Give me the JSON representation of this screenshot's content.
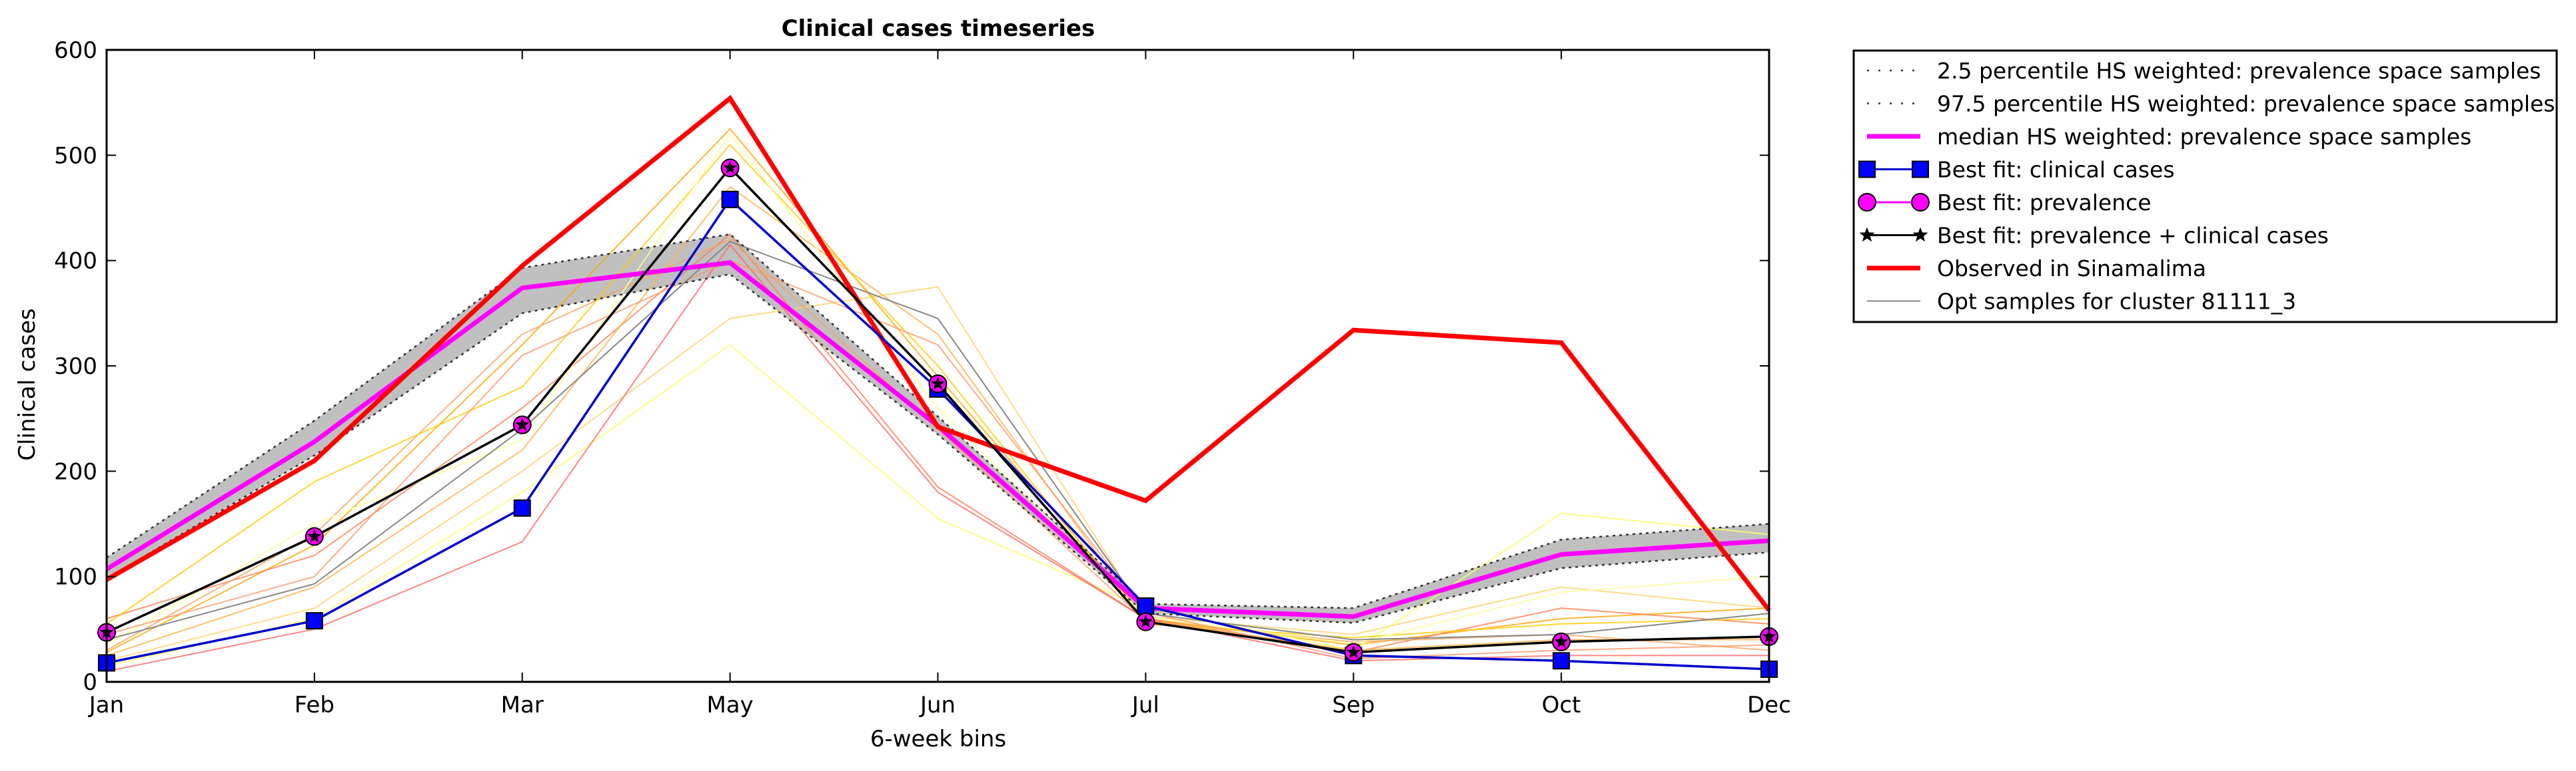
{
  "chart_data": {
    "type": "line",
    "title": "Clinical cases timeseries",
    "xlabel": "6-week bins",
    "ylabel": "Clinical cases",
    "categories": [
      "Jan",
      "Feb",
      "Mar",
      "May",
      "Jun",
      "Jul",
      "Sep",
      "Oct",
      "Dec"
    ],
    "ylim": [
      0,
      600
    ],
    "yticks": [
      0,
      100,
      200,
      300,
      400,
      500,
      600
    ],
    "grid": false,
    "legend_position": "outside-right",
    "band": {
      "lower": [
        98,
        215,
        350,
        387,
        235,
        65,
        56,
        108,
        123
      ],
      "upper": [
        118,
        248,
        393,
        425,
        252,
        74,
        70,
        135,
        150
      ],
      "color": "#c0c0c0"
    },
    "series": [
      {
        "name": "2.5 percentile HS weighted: prevalence space samples",
        "style": "dotted",
        "color": "#555555",
        "values": [
          98,
          215,
          350,
          387,
          235,
          65,
          56,
          108,
          123
        ]
      },
      {
        "name": "97.5 percentile HS weighted: prevalence space samples",
        "style": "dotted",
        "color": "#555555",
        "values": [
          118,
          248,
          393,
          425,
          252,
          74,
          70,
          135,
          150
        ]
      },
      {
        "name": "median HS weighted: prevalence space samples",
        "style": "solid",
        "color": "#ff00ff",
        "values": [
          107,
          228,
          374,
          398,
          243,
          70,
          62,
          121,
          134
        ]
      },
      {
        "name": "Best fit: clinical cases",
        "style": "square-marker",
        "color": "#0000cc",
        "values": [
          18,
          58,
          165,
          458,
          278,
          72,
          25,
          20,
          12
        ]
      },
      {
        "name": "Best fit: prevalence",
        "style": "circle-marker",
        "color": "#ff00ff",
        "values": [
          47,
          138,
          244,
          488,
          283,
          57,
          28,
          38,
          43
        ]
      },
      {
        "name": "Best fit: prevalence + clinical cases",
        "style": "star-marker",
        "color": "#000000",
        "values": [
          47,
          138,
          244,
          488,
          283,
          57,
          28,
          38,
          43
        ]
      },
      {
        "name": "Observed in Sinamalima",
        "style": "solid-thick",
        "color": "#ff0000",
        "values": [
          97,
          210,
          395,
          554,
          242,
          172,
          334,
          322,
          68
        ]
      },
      {
        "name": "Opt samples for cluster 81111_3",
        "style": "thin",
        "color": "#888888",
        "values": [
          40,
          93,
          240,
          418,
          345,
          65,
          40,
          45,
          65
        ]
      }
    ],
    "opt_samples": [
      {
        "color": "#ffa500",
        "values": [
          28,
          130,
          320,
          525,
          290,
          60,
          35,
          60,
          70
        ]
      },
      {
        "color": "#ffd36b",
        "values": [
          20,
          70,
          200,
          345,
          375,
          62,
          45,
          90,
          70
        ]
      },
      {
        "color": "#ffff66",
        "values": [
          15,
          60,
          180,
          320,
          155,
          70,
          30,
          160,
          140
        ]
      },
      {
        "color": "#ff7f50",
        "values": [
          60,
          120,
          260,
          425,
          185,
          60,
          28,
          70,
          55
        ]
      },
      {
        "color": "#ff6666",
        "values": [
          10,
          50,
          133,
          415,
          180,
          60,
          20,
          25,
          25
        ]
      },
      {
        "color": "#f4a460",
        "values": [
          30,
          140,
          330,
          420,
          240,
          58,
          38,
          45,
          30
        ]
      },
      {
        "color": "#ffcc00",
        "values": [
          55,
          190,
          280,
          510,
          300,
          55,
          42,
          55,
          60
        ]
      },
      {
        "color": "#ffb347",
        "values": [
          25,
          90,
          220,
          470,
          330,
          58,
          30,
          40,
          40
        ]
      },
      {
        "color": "#ffff99",
        "values": [
          35,
          150,
          230,
          520,
          260,
          62,
          36,
          85,
          100
        ]
      },
      {
        "color": "#ff9966",
        "values": [
          45,
          100,
          310,
          400,
          320,
          66,
          22,
          30,
          35
        ]
      }
    ]
  }
}
